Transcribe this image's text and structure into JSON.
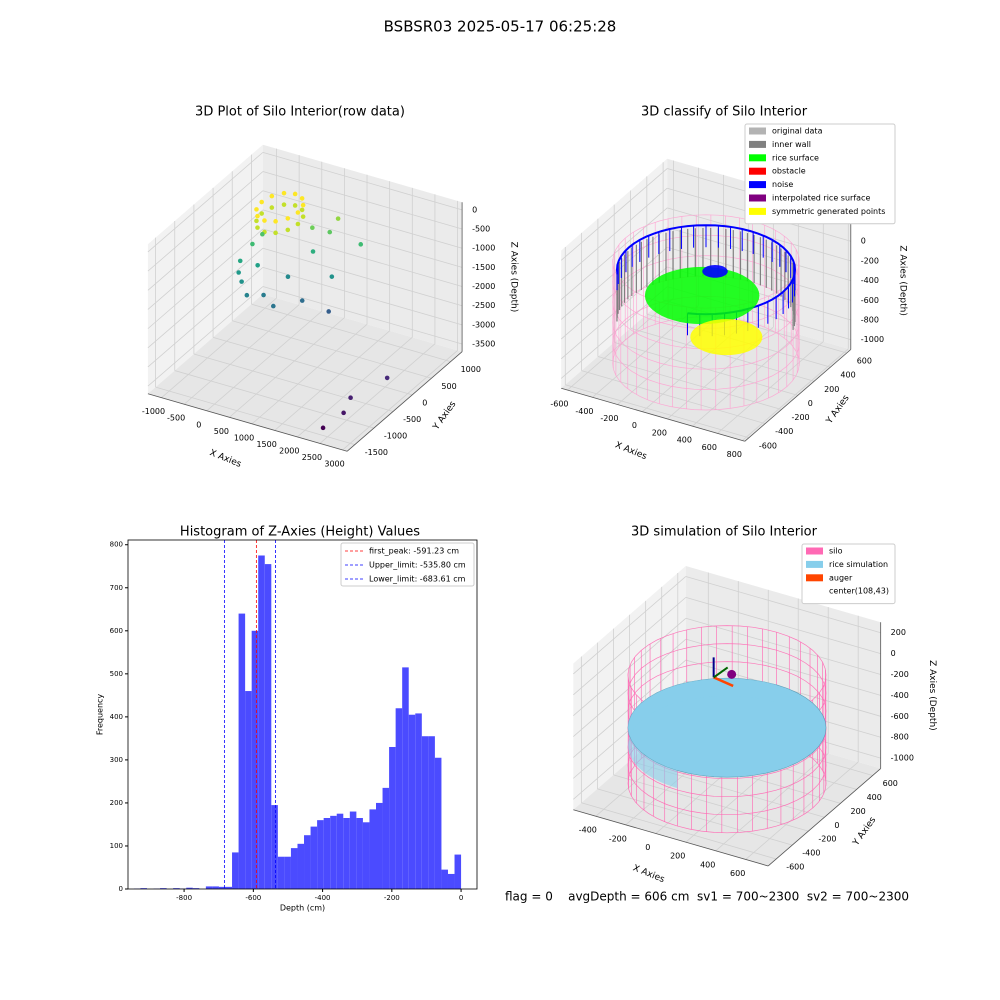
{
  "title": "BSBSR03 2025-05-17 06:25:28",
  "footer": "flag = 0    avgDepth = 606 cm  sv1 = 700~2300  sv2 = 700~2300",
  "chart_data": [
    {
      "type": "scatter3d",
      "title": "3D Plot of Silo Interior(row data)",
      "xlabel": "X Axies",
      "ylabel": "Y Axies",
      "zlabel": "Z Axies (Depth)",
      "xlim": [
        -1300,
        3100
      ],
      "ylim": [
        -1700,
        1300
      ],
      "zlim": [
        -3700,
        200
      ],
      "xticks": [
        -1000,
        -500,
        0,
        500,
        1000,
        1500,
        2000,
        2500,
        3000
      ],
      "yticks": [
        -1500,
        -1000,
        -500,
        0,
        500,
        1000
      ],
      "zticks": [
        0,
        -500,
        -1000,
        -1500,
        -2000,
        -2500,
        -3000,
        -3500
      ],
      "colormap": "viridis",
      "points": {
        "x": [
          320,
          266,
          120,
          -80,
          -280,
          -426,
          -480,
          -426,
          -280,
          -80,
          120,
          266,
          320,
          266,
          120,
          -80,
          -280,
          -426,
          -480,
          -426,
          -280,
          -80,
          120,
          266,
          -600,
          -700,
          -500,
          -300,
          -100,
          100,
          400,
          600,
          700,
          -400,
          -550,
          200,
          500,
          900,
          1000,
          1200,
          -650,
          300,
          2600,
          2500,
          2400,
          2800
        ],
        "y": [
          300,
          500,
          646,
          700,
          646,
          500,
          300,
          100,
          -46,
          -100,
          -46,
          100,
          300,
          500,
          646,
          700,
          646,
          500,
          300,
          100,
          -46,
          -100,
          -46,
          100,
          200,
          0,
          -200,
          -300,
          -100,
          300,
          600,
          800,
          900,
          100,
          400,
          -200,
          200,
          500,
          300,
          900,
          -100,
          700,
          -1200,
          -900,
          -1500,
          -300
        ],
        "z": [
          -150,
          -150,
          -150,
          -150,
          -150,
          -150,
          -150,
          -150,
          -150,
          -150,
          -150,
          -150,
          -450,
          -450,
          -450,
          -450,
          -450,
          -450,
          -450,
          -450,
          -450,
          -450,
          -450,
          -450,
          -1200,
          -1500,
          -1800,
          -2000,
          -2100,
          -1900,
          -1400,
          -1000,
          -700,
          -1600,
          -1100,
          -2200,
          -2300,
          -1800,
          -2500,
          -1200,
          -1700,
          -900,
          -3300,
          -3200,
          -3500,
          -3100
        ]
      }
    },
    {
      "type": "classify3d",
      "title": "3D classify of Silo Interior",
      "xlabel": "X Axies",
      "ylabel": "Y Axies",
      "zlabel": "Z Axies (Depth)",
      "xlim": [
        -650,
        820
      ],
      "ylim": [
        -650,
        650
      ],
      "zlim": [
        -1100,
        300
      ],
      "xticks": [
        -600,
        -400,
        -200,
        0,
        200,
        400,
        600,
        800
      ],
      "yticks": [
        -600,
        -400,
        -200,
        0,
        200,
        400,
        600
      ],
      "zticks": [
        200,
        0,
        -200,
        -400,
        -600,
        -800,
        -1000
      ],
      "legend": "upper right",
      "series": [
        {
          "name": "original data",
          "color": "#b3b3b3"
        },
        {
          "name": "inner wall",
          "color": "#808080"
        },
        {
          "name": "rice surface",
          "color": "#00ff00"
        },
        {
          "name": "obstacle",
          "color": "#ff0000"
        },
        {
          "name": "noise",
          "color": "#0000ff"
        },
        {
          "name": "interpolated rice surface",
          "color": "#800080"
        },
        {
          "name": "symmetric generated points",
          "color": "#ffff00"
        }
      ]
    },
    {
      "type": "histogram",
      "title": "Histogram of Z-Axies (Height) Values",
      "xlabel": "Depth (cm)",
      "ylabel": "Frequency",
      "xlim": [
        -962,
        46
      ],
      "ylim": [
        0,
        811
      ],
      "xticks": [
        -800,
        -600,
        -400,
        -200,
        0
      ],
      "yticks": [
        0,
        100,
        200,
        300,
        400,
        500,
        600,
        700,
        800
      ],
      "color": "#4b4bff",
      "legend": "upper right",
      "bins": [
        -945,
        -926.1,
        -907.2,
        -888.3,
        -869.4,
        -850.5,
        -831.6,
        -812.7,
        -793.8,
        -774.9,
        -756,
        -737.1,
        -718.2,
        -699.3,
        -680.4,
        -661.5,
        -642.6,
        -623.7,
        -604.8,
        -585.9,
        -567,
        -548.1,
        -529.2,
        -510.3,
        -491.4,
        -472.5,
        -453.6,
        -434.7,
        -415.8,
        -396.9,
        -378,
        -359.1,
        -340.2,
        -321.3,
        -302.4,
        -283.5,
        -264.6,
        -245.7,
        -226.8,
        -207.9,
        -189,
        -170.1,
        -151.2,
        -132.3,
        -113.4,
        -94.5,
        -75.6,
        -56.7,
        -37.8,
        -18.9,
        0
      ],
      "counts": [
        1,
        2,
        0,
        1,
        2,
        0,
        2,
        1,
        3,
        2,
        0,
        6,
        6,
        5,
        5,
        85,
        640,
        460,
        600,
        775,
        755,
        195,
        75,
        75,
        95,
        105,
        125,
        145,
        160,
        165,
        170,
        175,
        165,
        180,
        165,
        155,
        185,
        200,
        235,
        330,
        420,
        515,
        405,
        408,
        355,
        355,
        305,
        45,
        35,
        80
      ],
      "vlines": [
        {
          "name": "first_peak: -591.23 cm",
          "value": -591.23,
          "color": "#ff0000"
        },
        {
          "name": "Upper_limit: -535.80 cm",
          "value": -535.8,
          "color": "#0000ff"
        },
        {
          "name": "Lower_limit: -683.61 cm",
          "value": -683.61,
          "color": "#0000ff"
        }
      ]
    },
    {
      "type": "simulation3d",
      "title": "3D simulation of Silo Interior",
      "xlabel": "X Axies",
      "ylabel": "Y Axies",
      "zlabel": "Z Axies (Depth)",
      "xlim": [
        -550,
        750
      ],
      "ylim": [
        -700,
        700
      ],
      "zlim": [
        -1100,
        300
      ],
      "xticks": [
        -400,
        -200,
        0,
        200,
        400,
        600
      ],
      "yticks": [
        -600,
        -400,
        -200,
        0,
        200,
        400,
        600
      ],
      "zticks": [
        200,
        0,
        -200,
        -400,
        -600,
        -800,
        -1000
      ],
      "legend": "upper right",
      "series": [
        {
          "name": "silo",
          "color": "#ff69b4"
        },
        {
          "name": "rice simulation",
          "color": "#87ceeb"
        },
        {
          "name": "auger",
          "color": "#ff4500"
        },
        {
          "name": "center(108,43)"
        }
      ]
    }
  ]
}
